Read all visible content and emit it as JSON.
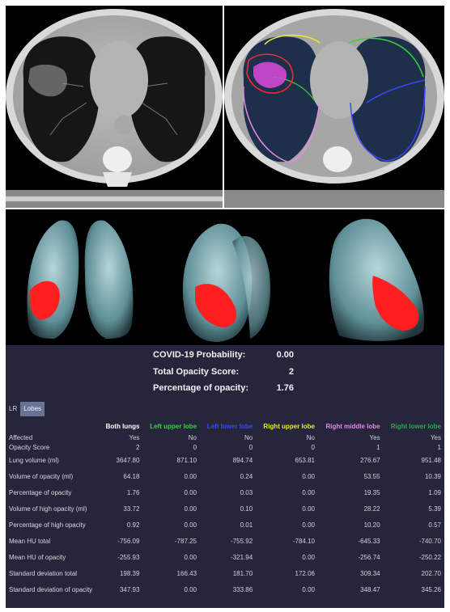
{
  "summary": {
    "probability_label": "COVID-19 Probability:",
    "probability_value": "0.00",
    "score_label": "Total Opacity Score:",
    "score_value": "2",
    "percentage_label": "Percentage of opacity:",
    "percentage_value": "1.76"
  },
  "tabs": [
    "LR",
    "Lobes"
  ],
  "table": {
    "columns": [
      "Both lungs",
      "Left upper lobe",
      "Left lower lobe",
      "Right upper lobe",
      "Right middle lobe",
      "Right lower lobe"
    ],
    "column_colors": [
      "#ffffff",
      "#3bd13b",
      "#3a46ff",
      "#ecec2a",
      "#e88ae8",
      "#2ea84a"
    ],
    "rows": [
      {
        "label": "Affected",
        "values": [
          "Yes",
          "No",
          "No",
          "No",
          "Yes",
          "Yes"
        ]
      },
      {
        "label": "Opacity Score",
        "values": [
          "2",
          "0",
          "0",
          "0",
          "1",
          "1"
        ]
      },
      {
        "label": "Lung volume (ml)",
        "values": [
          "3647.80",
          "871.10",
          "894.74",
          "653.81",
          "276.67",
          "951.48"
        ]
      },
      {
        "label": "Volume of opacity (ml)",
        "values": [
          "64.18",
          "0.00",
          "0.24",
          "0.00",
          "53.55",
          "10.39"
        ]
      },
      {
        "label": "Percentage of opacity",
        "values": [
          "1.76",
          "0.00",
          "0.03",
          "0.00",
          "19.35",
          "1.09"
        ]
      },
      {
        "label": "Volume of high opacity (ml)",
        "values": [
          "33.72",
          "0.00",
          "0.10",
          "0.00",
          "28.22",
          "5.39"
        ]
      },
      {
        "label": "Percentage of high opacity",
        "values": [
          "0.92",
          "0.00",
          "0.01",
          "0.00",
          "10.20",
          "0.57"
        ]
      },
      {
        "label": "Mean HU total",
        "values": [
          "-756.09",
          "-787.25",
          "-755.92",
          "-784.10",
          "-645.33",
          "-740.70"
        ]
      },
      {
        "label": "Mean HU of opacity",
        "values": [
          "-255.93",
          "0.00",
          "-321.94",
          "0.00",
          "-256.74",
          "-250.22"
        ]
      },
      {
        "label": "Standard deviation total",
        "values": [
          "198.39",
          "166.43",
          "181.70",
          "172.06",
          "309.34",
          "202.70"
        ]
      },
      {
        "label": "Standard deviation of opacity",
        "values": [
          "347.93",
          "0.00",
          "333.86",
          "0.00",
          "348.47",
          "345.26"
        ]
      }
    ]
  },
  "colors": {
    "panel_bg": "#25253b",
    "opacity_red": "#ff1f1f",
    "lung_render": "#8fb8bf"
  }
}
